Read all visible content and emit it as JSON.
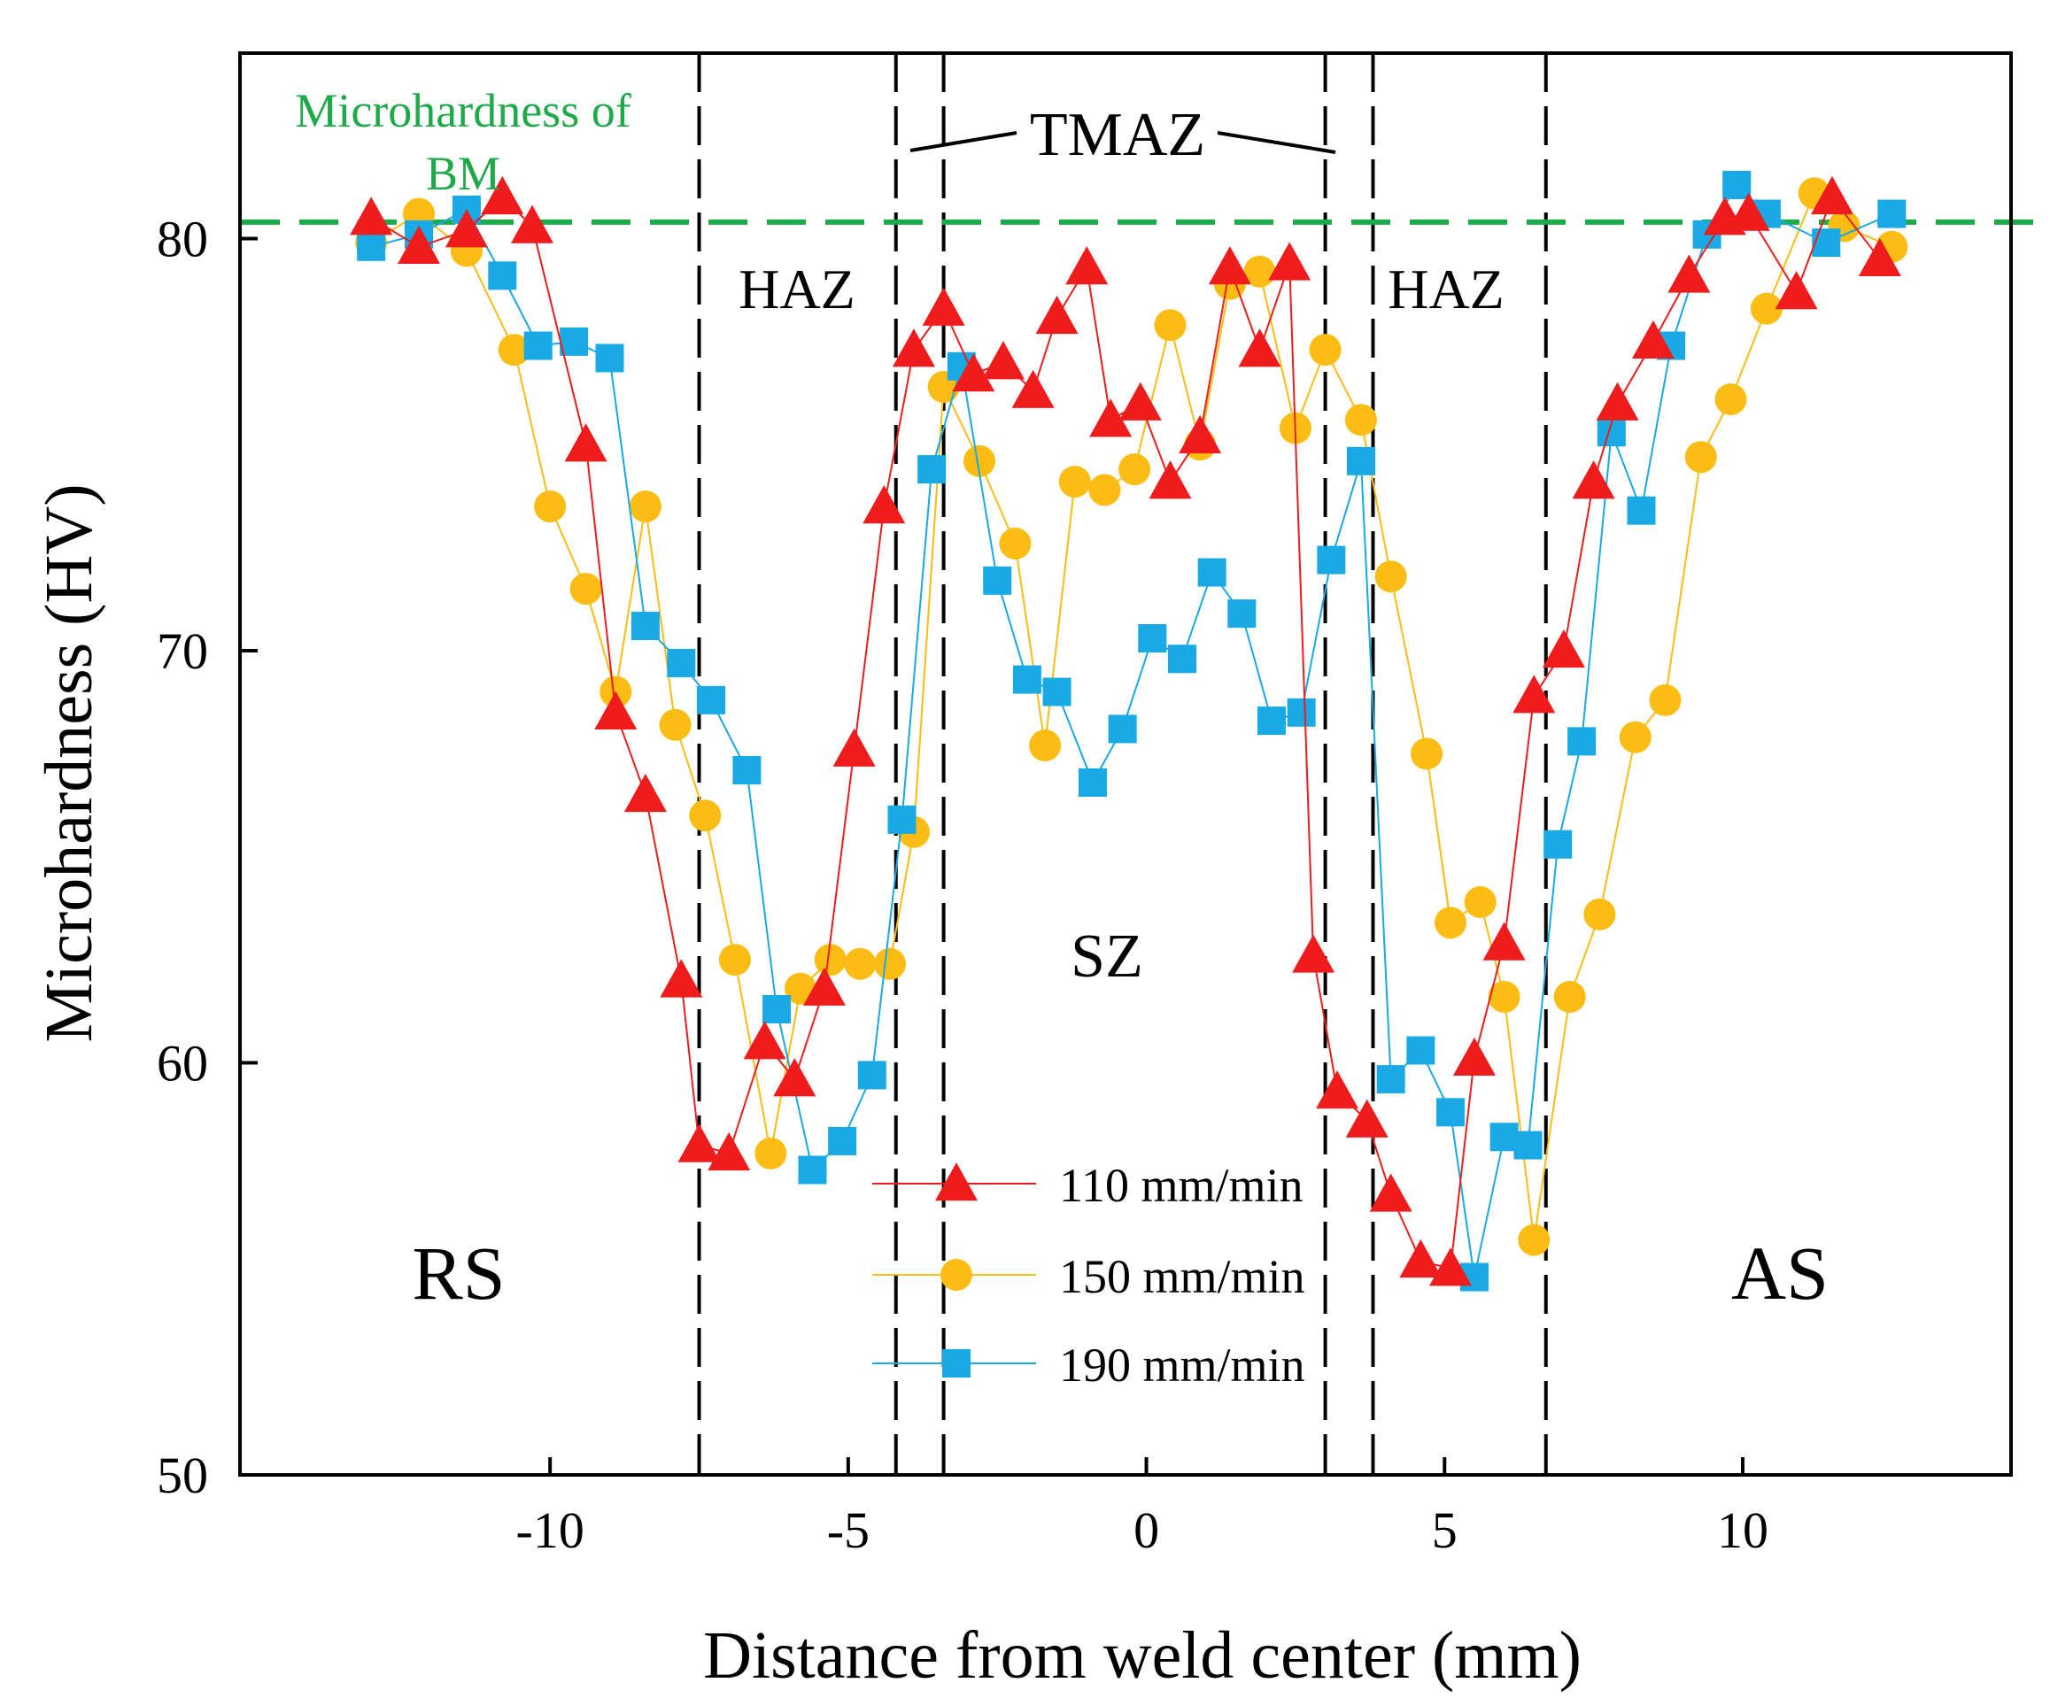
{
  "colors": {
    "frame": "#000000",
    "bm_line": "#1faa4a",
    "series_110": "#ee1c1c",
    "series_150": "#fbbd14",
    "series_190": "#19a9e4"
  },
  "annotations": {
    "bm_label_1": "Microhardness of",
    "bm_label_2": "BM",
    "tmaz": "TMAZ",
    "haz_left": "HAZ",
    "haz_right": "HAZ",
    "sz": "SZ",
    "rs": "RS",
    "as": "AS"
  },
  "chart_data": {
    "type": "line",
    "title": "",
    "xlabel": "Distance from weld center (mm)",
    "ylabel": "Microhardness (HV)",
    "xlim": [
      -15.2,
      14.5
    ],
    "ylim": [
      50,
      84.5
    ],
    "xticks": [
      -10,
      -5,
      0,
      5,
      10
    ],
    "xtick_labels": [
      "-10",
      "-5",
      "0",
      "5",
      "10"
    ],
    "yticks": [
      50,
      60,
      70,
      80
    ],
    "ytick_labels": [
      "50",
      "60",
      "70",
      "80"
    ],
    "grid": false,
    "legend_position": "bottom-center",
    "bm_hardness": 80.4,
    "zone_boundaries": [
      -7.5,
      -4.2,
      -3.4,
      3.0,
      3.8,
      6.7
    ],
    "series": [
      {
        "name": "110 mm/min",
        "marker": "triangle",
        "color_key": "series_110",
        "x": [
          -13,
          -12.2,
          -11.4,
          -10.8,
          -10.3,
          -9.4,
          -8.9,
          -8.4,
          -7.8,
          -7.5,
          -7.0,
          -6.4,
          -5.9,
          -5.4,
          -4.9,
          -4.4,
          -3.9,
          -3.4,
          -2.9,
          -2.4,
          -1.9,
          -1.5,
          -1.0,
          -0.6,
          -0.1,
          0.4,
          0.9,
          1.4,
          1.9,
          2.4,
          2.8,
          3.2,
          3.7,
          4.1,
          4.6,
          5.1,
          5.5,
          6.0,
          6.5,
          7.0,
          7.5,
          7.9,
          8.5,
          9.1,
          9.7,
          10.1,
          10.9,
          11.5,
          12.3
        ],
        "y": [
          80.5,
          79.8,
          80.2,
          81.0,
          80.3,
          75.0,
          68.5,
          66.5,
          62.0,
          58.0,
          57.8,
          60.5,
          59.6,
          61.8,
          67.6,
          73.5,
          77.3,
          78.3,
          76.7,
          77.0,
          76.3,
          78.1,
          79.3,
          75.6,
          76.0,
          74.1,
          75.2,
          79.3,
          77.3,
          79.4,
          62.6,
          59.3,
          58.6,
          56.8,
          55.2,
          55.0,
          60.1,
          62.9,
          68.9,
          70.0,
          74.1,
          76.0,
          77.5,
          79.1,
          80.5,
          80.6,
          78.7,
          81.0,
          79.5
        ]
      },
      {
        "name": "150 mm/min",
        "marker": "circle",
        "color_key": "series_150",
        "x": [
          -13,
          -12.2,
          -11.4,
          -10.6,
          -10.0,
          -9.4,
          -8.9,
          -8.4,
          -7.9,
          -7.4,
          -6.9,
          -6.3,
          -5.8,
          -5.3,
          -4.8,
          -4.3,
          -3.9,
          -3.4,
          -2.8,
          -2.2,
          -1.7,
          -1.2,
          -0.7,
          -0.2,
          0.4,
          0.9,
          1.4,
          1.9,
          2.5,
          3.0,
          3.6,
          4.1,
          4.7,
          5.1,
          5.6,
          6.0,
          6.5,
          7.1,
          7.6,
          8.2,
          8.7,
          9.3,
          9.8,
          10.4,
          11.2,
          11.7,
          12.5
        ],
        "y": [
          79.9,
          80.6,
          79.7,
          77.3,
          73.5,
          71.5,
          69.0,
          73.5,
          68.2,
          66.0,
          62.5,
          57.8,
          61.8,
          62.5,
          62.4,
          62.4,
          65.6,
          76.4,
          74.6,
          72.6,
          67.7,
          74.1,
          73.9,
          74.4,
          77.9,
          75.0,
          78.9,
          79.2,
          75.4,
          77.3,
          75.6,
          71.8,
          67.5,
          63.4,
          63.9,
          61.6,
          55.7,
          61.6,
          63.6,
          67.9,
          68.8,
          74.7,
          76.1,
          78.3,
          81.1,
          80.3,
          79.8
        ]
      },
      {
        "name": "190 mm/min",
        "marker": "square",
        "color_key": "series_190",
        "x": [
          -13,
          -12.2,
          -11.4,
          -10.8,
          -10.2,
          -9.6,
          -9.0,
          -8.4,
          -7.8,
          -7.3,
          -6.7,
          -6.2,
          -5.6,
          -5.1,
          -4.6,
          -4.1,
          -3.6,
          -3.1,
          -2.5,
          -2.0,
          -1.5,
          -0.9,
          -0.4,
          0.1,
          0.6,
          1.1,
          1.6,
          2.1,
          2.6,
          3.1,
          3.6,
          4.1,
          4.6,
          5.1,
          5.5,
          6.0,
          6.4,
          6.9,
          7.3,
          7.8,
          8.3,
          8.8,
          9.4,
          9.9,
          10.4,
          11.4,
          12.5
        ],
        "y": [
          79.8,
          80.1,
          80.7,
          79.1,
          77.4,
          77.5,
          77.1,
          70.6,
          69.7,
          68.8,
          67.1,
          61.3,
          57.4,
          58.1,
          59.7,
          65.9,
          74.4,
          76.9,
          71.7,
          69.3,
          69.0,
          66.8,
          68.1,
          70.3,
          69.8,
          71.9,
          70.9,
          68.3,
          68.5,
          72.2,
          74.6,
          59.6,
          60.3,
          58.8,
          54.8,
          58.2,
          58.0,
          65.3,
          67.8,
          75.3,
          73.4,
          77.4,
          80.1,
          81.3,
          80.6,
          79.9,
          80.6
        ]
      }
    ]
  }
}
